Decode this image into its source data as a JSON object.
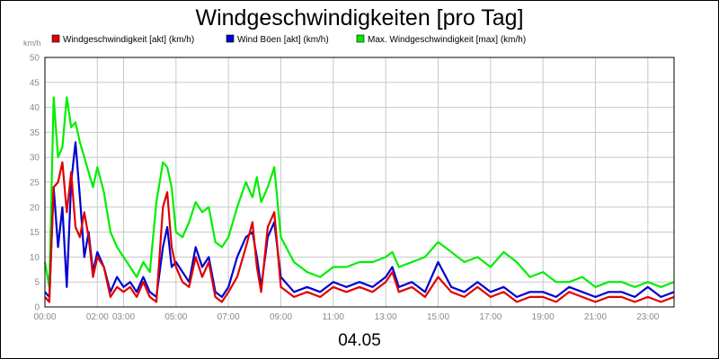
{
  "chart_data": {
    "type": "line",
    "title": "Windgeschwindigkeiten [pro Tag]",
    "ylabel": "km/h",
    "date_label": "04.05",
    "xlim": [
      "00:00",
      "24:00"
    ],
    "ylim": [
      0,
      50
    ],
    "yticks": [
      0,
      5,
      10,
      15,
      20,
      25,
      30,
      35,
      40,
      45,
      50
    ],
    "xticks": [
      "00:00",
      "02:00",
      "03:00",
      "05:00",
      "07:00",
      "09:00",
      "11:00",
      "13:00",
      "15:00",
      "17:00",
      "19:00",
      "21:00",
      "23:00"
    ],
    "grid": true,
    "legend_position": "top",
    "series": [
      {
        "name": "Windgeschwindigkeit [akt] (km/h)",
        "color": "#e00000",
        "x": [
          "00:00",
          "00:10",
          "00:20",
          "00:30",
          "00:40",
          "00:50",
          "01:00",
          "01:10",
          "01:20",
          "01:30",
          "01:40",
          "01:50",
          "02:00",
          "02:15",
          "02:30",
          "02:45",
          "03:00",
          "03:15",
          "03:30",
          "03:45",
          "04:00",
          "04:15",
          "04:30",
          "04:40",
          "04:50",
          "05:00",
          "05:15",
          "05:30",
          "05:45",
          "06:00",
          "06:15",
          "06:30",
          "06:45",
          "07:00",
          "07:20",
          "07:40",
          "07:55",
          "08:05",
          "08:15",
          "08:30",
          "08:45",
          "09:00",
          "09:30",
          "10:00",
          "10:30",
          "11:00",
          "11:30",
          "12:00",
          "12:30",
          "13:00",
          "13:15",
          "13:30",
          "14:00",
          "14:30",
          "15:00",
          "15:30",
          "16:00",
          "16:30",
          "17:00",
          "17:30",
          "18:00",
          "18:30",
          "19:00",
          "19:30",
          "20:00",
          "20:30",
          "21:00",
          "21:30",
          "22:00",
          "22:30",
          "23:00",
          "23:30",
          "24:00"
        ],
        "values": [
          2,
          1,
          24,
          25,
          29,
          19,
          27,
          16,
          14,
          19,
          14,
          6,
          10,
          8,
          2,
          4,
          3,
          4,
          2,
          5,
          2,
          1,
          20,
          23,
          12,
          8,
          5,
          4,
          10,
          6,
          9,
          2,
          1,
          3,
          6,
          12,
          17,
          8,
          3,
          16,
          19,
          4,
          2,
          3,
          2,
          4,
          3,
          4,
          3,
          5,
          7,
          3,
          4,
          2,
          6,
          3,
          2,
          4,
          2,
          3,
          1,
          2,
          2,
          1,
          3,
          2,
          1,
          2,
          2,
          1,
          2,
          1,
          2
        ]
      },
      {
        "name": "Wind Böen [akt] (km/h)",
        "color": "#0000d0",
        "x": [
          "00:00",
          "00:10",
          "00:20",
          "00:30",
          "00:40",
          "00:50",
          "01:00",
          "01:10",
          "01:20",
          "01:30",
          "01:40",
          "01:50",
          "02:00",
          "02:15",
          "02:30",
          "02:45",
          "03:00",
          "03:15",
          "03:30",
          "03:45",
          "04:00",
          "04:15",
          "04:30",
          "04:40",
          "04:50",
          "05:00",
          "05:15",
          "05:30",
          "05:45",
          "06:00",
          "06:15",
          "06:30",
          "06:45",
          "07:00",
          "07:20",
          "07:40",
          "07:55",
          "08:05",
          "08:15",
          "08:30",
          "08:45",
          "09:00",
          "09:30",
          "10:00",
          "10:30",
          "11:00",
          "11:30",
          "12:00",
          "12:30",
          "13:00",
          "13:15",
          "13:30",
          "14:00",
          "14:30",
          "15:00",
          "15:30",
          "16:00",
          "16:30",
          "17:00",
          "17:30",
          "18:00",
          "18:30",
          "19:00",
          "19:30",
          "20:00",
          "20:30",
          "21:00",
          "21:30",
          "22:00",
          "22:30",
          "23:00",
          "23:30",
          "24:00"
        ],
        "values": [
          3,
          2,
          24,
          12,
          20,
          4,
          25,
          33,
          22,
          10,
          15,
          7,
          11,
          8,
          3,
          6,
          4,
          5,
          3,
          6,
          3,
          2,
          12,
          16,
          8,
          9,
          7,
          5,
          12,
          8,
          10,
          3,
          2,
          4,
          10,
          14,
          15,
          10,
          4,
          14,
          17,
          6,
          3,
          4,
          3,
          5,
          4,
          5,
          4,
          6,
          8,
          4,
          5,
          3,
          9,
          4,
          3,
          5,
          3,
          4,
          2,
          3,
          3,
          2,
          4,
          3,
          2,
          3,
          3,
          2,
          4,
          2,
          3
        ]
      },
      {
        "name": "Max. Windgeschwindigkeit [max] (km/h)",
        "color": "#00ee00",
        "x": [
          "00:00",
          "00:10",
          "00:20",
          "00:30",
          "00:40",
          "00:50",
          "01:00",
          "01:10",
          "01:20",
          "01:30",
          "01:40",
          "01:50",
          "02:00",
          "02:15",
          "02:30",
          "02:45",
          "03:00",
          "03:15",
          "03:30",
          "03:45",
          "04:00",
          "04:15",
          "04:30",
          "04:40",
          "04:50",
          "05:00",
          "05:15",
          "05:30",
          "05:45",
          "06:00",
          "06:15",
          "06:30",
          "06:45",
          "07:00",
          "07:20",
          "07:40",
          "07:55",
          "08:05",
          "08:15",
          "08:30",
          "08:45",
          "09:00",
          "09:30",
          "10:00",
          "10:30",
          "11:00",
          "11:30",
          "12:00",
          "12:30",
          "13:00",
          "13:15",
          "13:30",
          "14:00",
          "14:30",
          "15:00",
          "15:30",
          "16:00",
          "16:30",
          "17:00",
          "17:30",
          "18:00",
          "18:30",
          "19:00",
          "19:30",
          "20:00",
          "20:30",
          "21:00",
          "21:30",
          "22:00",
          "22:30",
          "23:00",
          "23:30",
          "24:00"
        ],
        "values": [
          9,
          4,
          42,
          30,
          32,
          42,
          36,
          37,
          33,
          30,
          27,
          24,
          28,
          23,
          15,
          12,
          10,
          8,
          6,
          9,
          7,
          21,
          29,
          28,
          24,
          15,
          14,
          17,
          21,
          19,
          20,
          13,
          12,
          14,
          20,
          25,
          22,
          26,
          21,
          24,
          28,
          14,
          9,
          7,
          6,
          8,
          8,
          9,
          9,
          10,
          11,
          8,
          9,
          10,
          13,
          11,
          9,
          10,
          8,
          11,
          9,
          6,
          7,
          5,
          5,
          6,
          4,
          5,
          5,
          4,
          5,
          4,
          5
        ]
      }
    ]
  }
}
